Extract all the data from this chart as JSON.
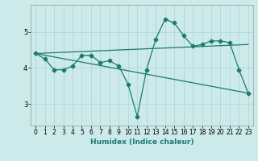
{
  "title": "",
  "xlabel": "Humidex (Indice chaleur)",
  "bg_color": "#cceaea",
  "line_color": "#1a7a6e",
  "grid_color": "#aad4d4",
  "x_values": [
    0,
    1,
    2,
    3,
    4,
    5,
    6,
    7,
    8,
    9,
    10,
    11,
    12,
    13,
    14,
    15,
    16,
    17,
    18,
    19,
    20,
    21,
    22,
    23
  ],
  "main_y": [
    4.4,
    4.25,
    3.95,
    3.95,
    4.05,
    4.35,
    4.35,
    4.15,
    4.2,
    4.05,
    3.55,
    2.65,
    3.95,
    4.8,
    5.35,
    5.25,
    4.9,
    4.6,
    4.65,
    4.75,
    4.75,
    4.7,
    3.95,
    3.3
  ],
  "trend1_x": [
    0,
    23
  ],
  "trend1_y": [
    4.4,
    4.65
  ],
  "trend2_x": [
    0,
    23
  ],
  "trend2_y": [
    4.4,
    3.3
  ],
  "ylim": [
    2.4,
    5.75
  ],
  "xlim": [
    -0.5,
    23.5
  ],
  "yticks": [
    3,
    4,
    5
  ],
  "xticks": [
    0,
    1,
    2,
    3,
    4,
    5,
    6,
    7,
    8,
    9,
    10,
    11,
    12,
    13,
    14,
    15,
    16,
    17,
    18,
    19,
    20,
    21,
    22,
    23
  ],
  "xlabel_fontsize": 6.5,
  "tick_fontsize": 5.5,
  "linewidth": 0.9,
  "markersize": 2.5
}
